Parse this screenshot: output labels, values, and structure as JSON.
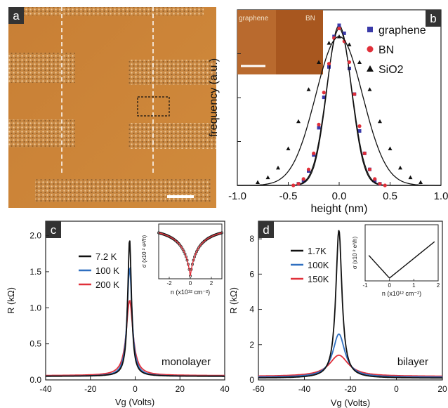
{
  "panels": {
    "a": {
      "label": "a"
    },
    "b": {
      "label": "b"
    },
    "c": {
      "label": "c"
    },
    "d": {
      "label": "d"
    }
  },
  "chart_data": [
    {
      "id": "b",
      "type": "scatter",
      "title": "",
      "xlabel": "height (nm)",
      "ylabel": "frequency (a.u.)",
      "xlim": [
        -1.0,
        1.0
      ],
      "xticks": [
        "-1.0",
        "-0.5",
        "0.0",
        "0.5",
        "1.0"
      ],
      "inset_labels": [
        "graphene",
        "BN"
      ],
      "legend": [
        {
          "name": "graphene",
          "marker": "square",
          "color": "#3a3aa8"
        },
        {
          "name": "BN",
          "marker": "circle",
          "color": "#e0303a"
        },
        {
          "name": "SiO2",
          "marker": "triangle",
          "color": "#111111"
        }
      ],
      "series": [
        {
          "name": "graphene",
          "center": 0.0,
          "sigma": 0.12,
          "peak": 1.0,
          "points_x": [
            -0.4,
            -0.35,
            -0.3,
            -0.25,
            -0.2,
            -0.15,
            -0.1,
            -0.05,
            0.0,
            0.05,
            0.1,
            0.15,
            0.2,
            0.25,
            0.3,
            0.35,
            0.4
          ],
          "values": [
            0.01,
            0.03,
            0.09,
            0.19,
            0.36,
            0.55,
            0.74,
            0.93,
            1.0,
            0.95,
            0.73,
            0.57,
            0.34,
            0.2,
            0.1,
            0.03,
            0.01
          ]
        },
        {
          "name": "BN",
          "center": 0.0,
          "sigma": 0.125,
          "peak": 0.98,
          "points_x": [
            -0.45,
            -0.4,
            -0.35,
            -0.3,
            -0.25,
            -0.2,
            -0.15,
            -0.1,
            -0.05,
            0.0,
            0.05,
            0.1,
            0.15,
            0.2,
            0.25,
            0.3,
            0.35,
            0.4,
            0.45
          ],
          "values": [
            0.0,
            0.01,
            0.04,
            0.1,
            0.2,
            0.38,
            0.58,
            0.76,
            0.92,
            0.98,
            0.9,
            0.77,
            0.57,
            0.37,
            0.2,
            0.1,
            0.04,
            0.01,
            0.0
          ]
        },
        {
          "name": "SiO2",
          "center": 0.0,
          "sigma": 0.23,
          "peak": 0.93,
          "points_x": [
            -0.8,
            -0.7,
            -0.6,
            -0.5,
            -0.4,
            -0.3,
            -0.2,
            -0.1,
            0.0,
            0.1,
            0.2,
            0.3,
            0.4,
            0.5,
            0.6,
            0.7,
            0.8
          ],
          "values": [
            0.02,
            0.05,
            0.11,
            0.23,
            0.4,
            0.6,
            0.77,
            0.89,
            0.93,
            0.88,
            0.77,
            0.6,
            0.4,
            0.23,
            0.11,
            0.05,
            0.02
          ]
        }
      ]
    },
    {
      "id": "c",
      "type": "line",
      "title": "",
      "xlabel": "Vg (Volts)",
      "ylabel": "R (kΩ)",
      "xlim": [
        -40,
        40
      ],
      "ylim": [
        0.0,
        2.2
      ],
      "xticks": [
        "-40",
        "-20",
        "0",
        "20",
        "40"
      ],
      "yticks": [
        "0.0",
        "0.5",
        "1.0",
        "1.5",
        "2.0"
      ],
      "annotation": "monolayer",
      "series": [
        {
          "name": "7.2 K",
          "color": "#111111",
          "peak_x": -2.5,
          "peak": 1.95,
          "width": 1.0,
          "base": 0.05
        },
        {
          "name": "100 K",
          "color": "#2f6fc0",
          "peak_x": -2.5,
          "peak": 1.55,
          "width": 1.3,
          "base": 0.05
        },
        {
          "name": "200 K",
          "color": "#e0303a",
          "peak_x": -2.5,
          "peak": 1.1,
          "width": 1.8,
          "base": 0.06
        }
      ],
      "inset": {
        "xlabel": "n (x10¹² cm⁻²)",
        "ylabel": "σ (x10 ² e²/h)",
        "xlim": [
          -3,
          3
        ],
        "xticks": [
          "-2",
          "0",
          "2"
        ]
      }
    },
    {
      "id": "d",
      "type": "line",
      "title": "",
      "xlabel": "Vg (Volts)",
      "ylabel": "R (kΩ)",
      "xlim": [
        -60,
        20
      ],
      "ylim": [
        0,
        9
      ],
      "xticks": [
        "-60",
        "-40",
        "-20",
        "0",
        "20"
      ],
      "yticks": [
        "0",
        "2",
        "4",
        "6",
        "8"
      ],
      "annotation": "bilayer",
      "series": [
        {
          "name": "1.7K",
          "color": "#111111",
          "peak_x": -25,
          "peak": 8.5,
          "width": 1.6,
          "base": 0.1
        },
        {
          "name": "100K",
          "color": "#2f6fc0",
          "peak_x": -25,
          "peak": 2.6,
          "width": 3.2,
          "base": 0.15
        },
        {
          "name": "150K",
          "color": "#e0303a",
          "peak_x": -25,
          "peak": 1.4,
          "width": 5.0,
          "base": 0.2
        }
      ],
      "inset": {
        "xlabel": "n (x10¹² cm⁻²)",
        "ylabel": "σ (x10 ² e²/h)",
        "xlim": [
          -1,
          2
        ],
        "xticks": [
          "-1",
          "0",
          "1",
          "2"
        ]
      }
    }
  ]
}
